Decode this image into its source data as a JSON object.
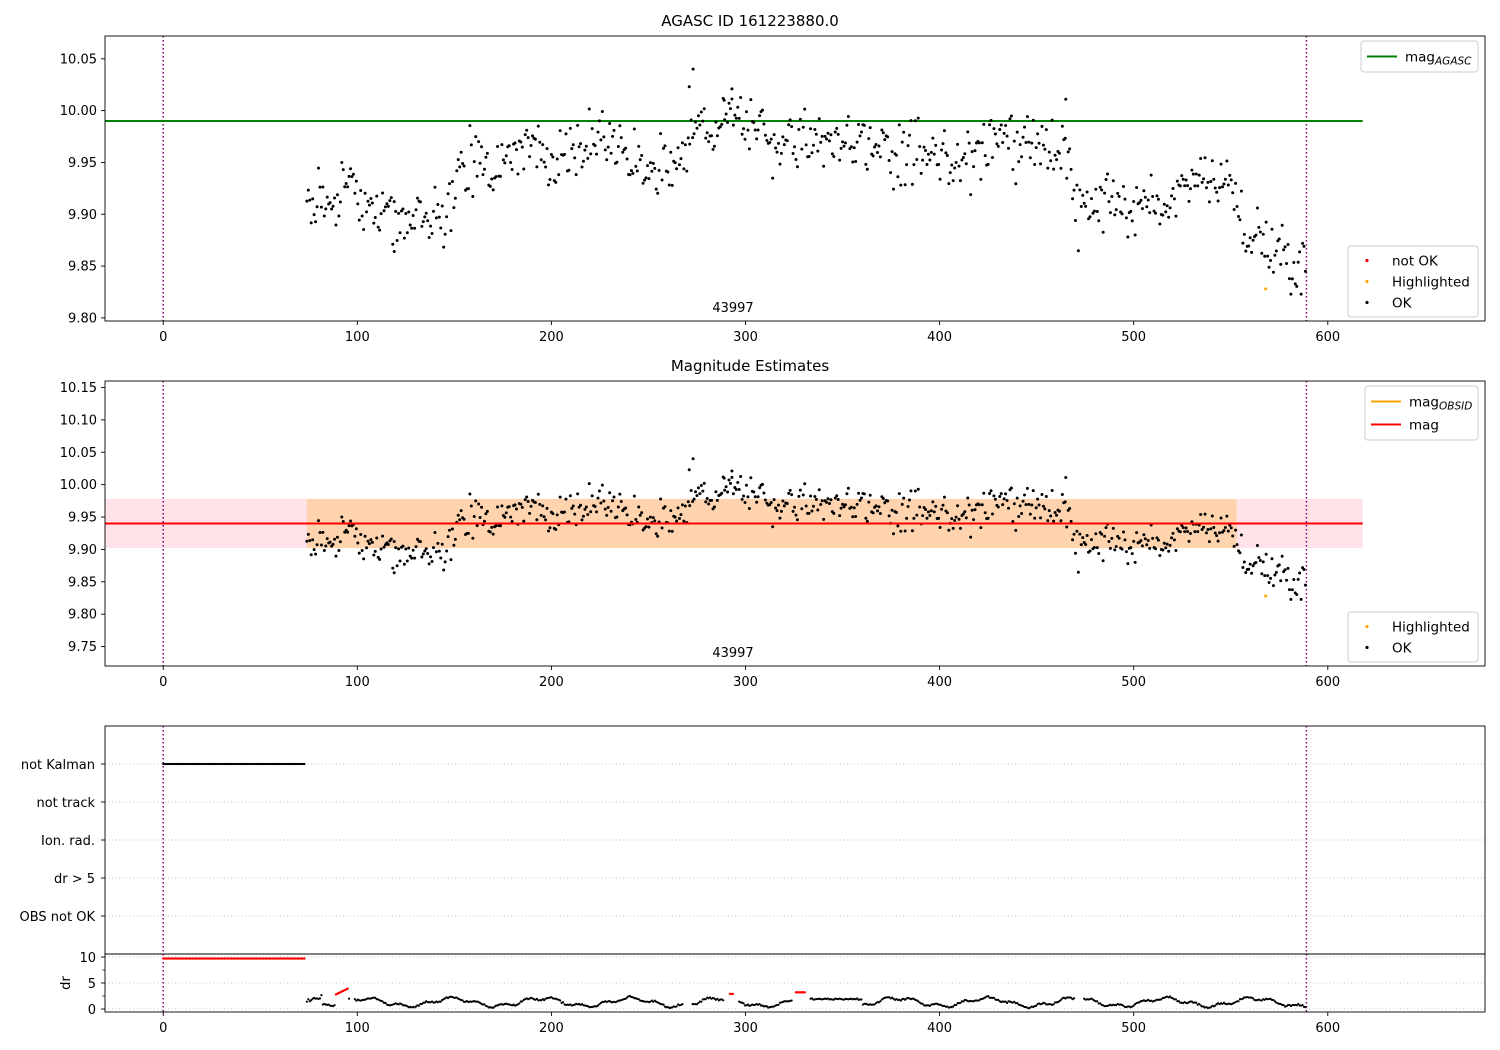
{
  "chart_data": [
    {
      "type": "scatter",
      "title": "AGASC ID 161223880.0",
      "xlabel": "",
      "ylabel": "",
      "xlim": [
        -30,
        681
      ],
      "ylim": [
        9.797,
        10.072
      ],
      "xticks": [
        0,
        100,
        200,
        300,
        400,
        500,
        600
      ],
      "yticks": [
        9.8,
        9.85,
        9.9,
        9.95,
        10.0,
        10.05
      ],
      "xtick_labels": [
        "0",
        "100",
        "200",
        "300",
        "400",
        "500",
        "600"
      ],
      "ytick_labels": [
        "9.80",
        "9.85",
        "9.90",
        "9.95",
        "10.00",
        "10.05"
      ],
      "annotation": "43997",
      "vlines": [
        0,
        589
      ],
      "hline": {
        "name": "mag",
        "subscript": "AGASC",
        "y": 9.99,
        "x_range": [
          -30,
          618
        ],
        "color": "#008000"
      },
      "series": [
        {
          "name": "not OK",
          "color": "#ff0000",
          "values": []
        },
        {
          "name": "Highlighted",
          "color": "#ffa500",
          "values": [
            [
              568,
              9.828
            ]
          ]
        },
        {
          "name": "OK",
          "color": "#000000",
          "values": []
        }
      ],
      "legend_upper": [
        {
          "label": "mag",
          "sub": "AGASC",
          "color": "#008000",
          "kind": "line"
        }
      ],
      "legend_lower": [
        {
          "label": "not OK",
          "color": "#ff0000",
          "kind": "dot"
        },
        {
          "label": "Highlighted",
          "color": "#ffa500",
          "kind": "dot"
        },
        {
          "label": "OK",
          "color": "#000000",
          "kind": "dot"
        }
      ]
    },
    {
      "type": "scatter",
      "title": "Magnitude Estimates",
      "xlabel": "",
      "ylabel": "",
      "xlim": [
        -30,
        681
      ],
      "ylim": [
        9.72,
        10.16
      ],
      "xticks": [
        0,
        100,
        200,
        300,
        400,
        500,
        600
      ],
      "yticks": [
        9.75,
        9.8,
        9.85,
        9.9,
        9.95,
        10.0,
        10.05,
        10.1,
        10.15
      ],
      "xtick_labels": [
        "0",
        "100",
        "200",
        "300",
        "400",
        "500",
        "600"
      ],
      "ytick_labels": [
        "9.75",
        "9.80",
        "9.85",
        "9.90",
        "9.95",
        "10.00",
        "10.05",
        "10.10",
        "10.15"
      ],
      "annotation": "43997",
      "vlines": [
        0,
        589
      ],
      "mag_line": {
        "name": "mag",
        "y": 9.94,
        "band": [
          9.902,
          9.978
        ],
        "x_range": [
          -30,
          618
        ],
        "color": "#ff0000"
      },
      "mag_obsid": {
        "name": "mag",
        "subscript": "OBSID",
        "y": 9.94,
        "band": [
          9.902,
          9.978
        ],
        "x_range": [
          74,
          553
        ],
        "color": "#ffa500"
      },
      "legend_upper": [
        {
          "label": "mag",
          "sub": "OBSID",
          "color": "#ffa500",
          "kind": "line"
        },
        {
          "label": "mag",
          "sub": "",
          "color": "#ff0000",
          "kind": "line"
        }
      ],
      "legend_lower": [
        {
          "label": "Highlighted",
          "color": "#ffa500",
          "kind": "dot"
        },
        {
          "label": "OK",
          "color": "#000000",
          "kind": "dot"
        }
      ]
    },
    {
      "type": "scatter",
      "title": "",
      "xlim": [
        -30,
        681
      ],
      "category_axis": [
        "not Kalman",
        "not track",
        "Ion. rad.",
        "dr > 5",
        "OBS not OK"
      ],
      "flags": [
        {
          "category": "not Kalman",
          "x_range": [
            0,
            73
          ]
        }
      ],
      "vlines": [
        0,
        589
      ]
    },
    {
      "type": "scatter",
      "title": "",
      "xlabel": "",
      "ylabel": "dr",
      "xlim": [
        -30,
        681
      ],
      "ylim": [
        -0.5,
        10.5
      ],
      "xticks": [
        0,
        100,
        200,
        300,
        400,
        500,
        600
      ],
      "xtick_labels": [
        "0",
        "100",
        "200",
        "300",
        "400",
        "500",
        "600"
      ],
      "yticks": [
        0,
        5,
        10
      ],
      "ytick_labels": [
        "0",
        "5",
        "10"
      ],
      "vlines": [
        0,
        589
      ],
      "red_segments": [
        {
          "x_range": [
            0,
            73
          ],
          "y": 9.7
        },
        {
          "x_range": [
            89,
            95
          ],
          "y_range": [
            2.8,
            3.9
          ]
        },
        {
          "x_range": [
            292,
            294
          ],
          "y": 2.9
        },
        {
          "x_range": [
            326,
            331
          ],
          "y": 3.2
        }
      ]
    }
  ]
}
